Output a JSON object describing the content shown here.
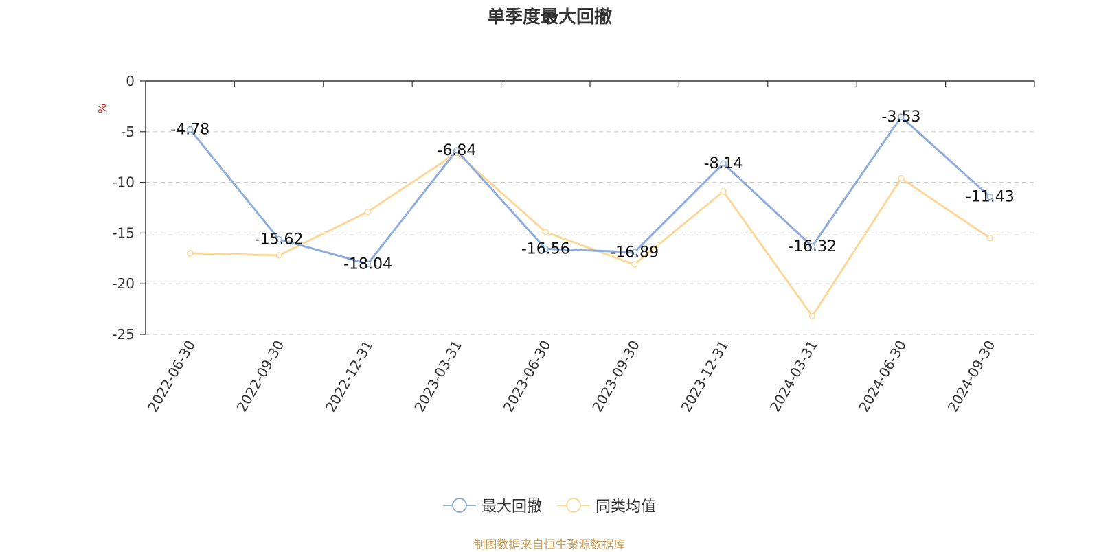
{
  "chart_data": {
    "type": "line",
    "title": "单季度最大回撤",
    "ylabel": "%",
    "categories": [
      "2022-06-30",
      "2022-09-30",
      "2022-12-31",
      "2023-03-31",
      "2023-06-30",
      "2023-09-30",
      "2023-12-31",
      "2024-03-31",
      "2024-06-30",
      "2024-09-30"
    ],
    "ylim": [
      -25,
      0
    ],
    "yticks": [
      0,
      -5,
      -10,
      -15,
      -20,
      -25
    ],
    "grid": true,
    "legend_position": "bottom",
    "series": [
      {
        "name": "最大回撤",
        "color": "#8eaddb",
        "labeled": true,
        "values": [
          -4.78,
          -15.62,
          -18.04,
          -6.84,
          -16.56,
          -16.89,
          -8.14,
          -16.32,
          -3.53,
          -11.43
        ]
      },
      {
        "name": "同类均值",
        "color": "#fbd89a",
        "labeled": false,
        "values": [
          -17.0,
          -17.2,
          -12.9,
          -7.1,
          -14.9,
          -18.1,
          -10.9,
          -23.2,
          -9.6,
          -15.5
        ]
      }
    ]
  },
  "source_text": "制图数据来自恒生聚源数据库"
}
